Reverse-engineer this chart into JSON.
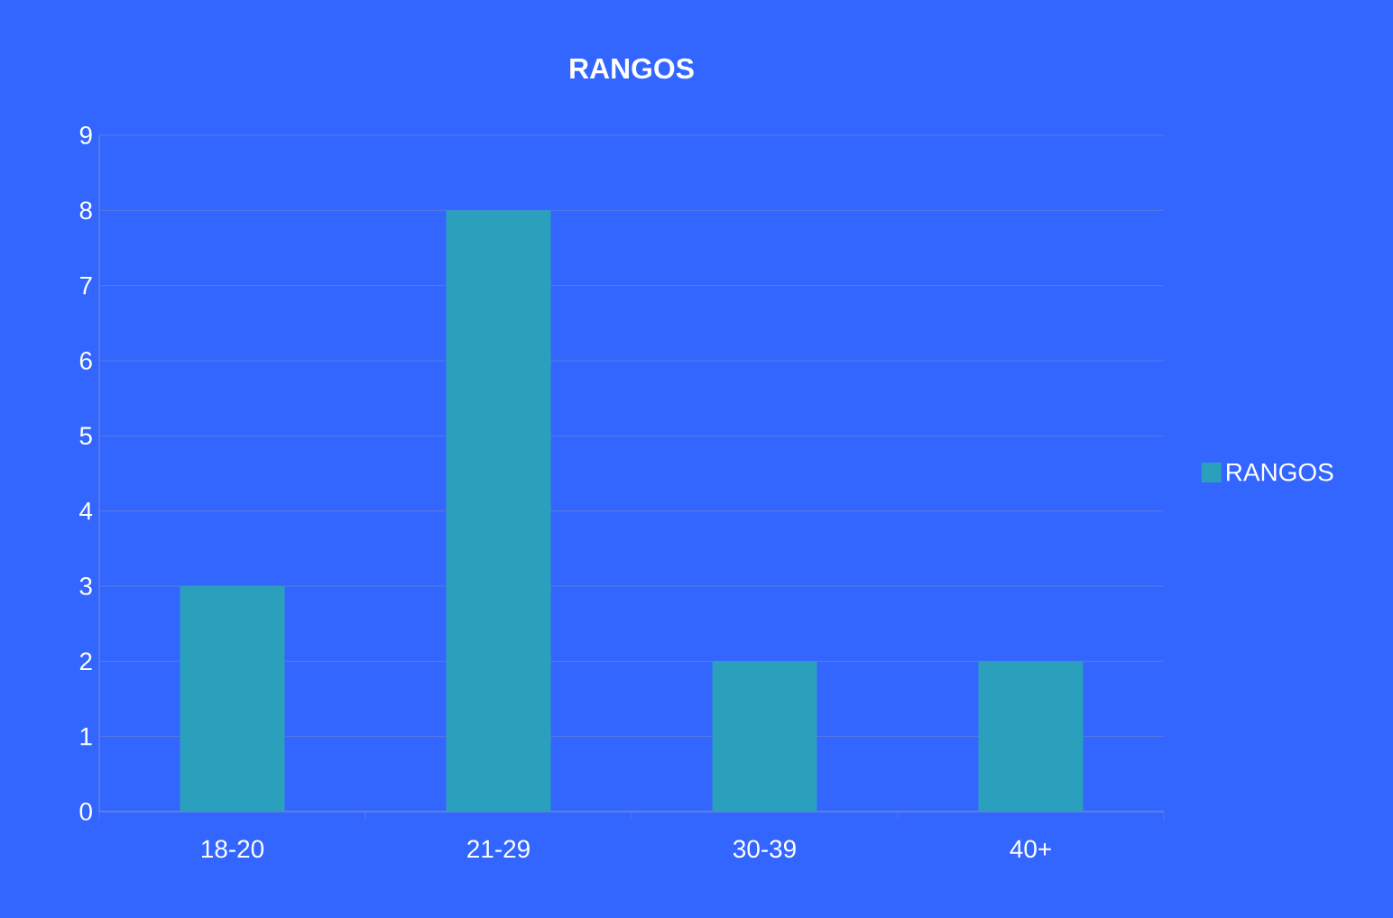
{
  "chart_data": {
    "type": "bar",
    "title": "RANGOS",
    "categories": [
      "18-20",
      "21-29",
      "30-39",
      "40+"
    ],
    "series": [
      {
        "name": "RANGOS",
        "color": "#2ba0bd",
        "values": [
          3,
          8,
          2,
          2
        ]
      }
    ],
    "ylim": [
      0,
      9
    ],
    "yticks": [
      0,
      1,
      2,
      3,
      4,
      5,
      6,
      7,
      8,
      9
    ],
    "grid": "y",
    "legend": "right"
  }
}
